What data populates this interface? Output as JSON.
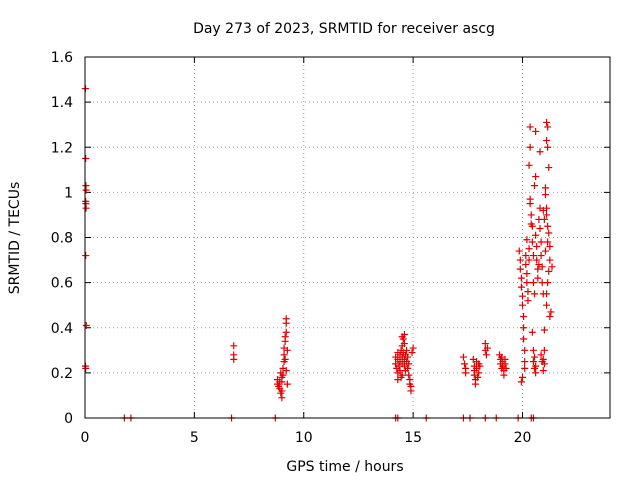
{
  "chart_data": {
    "type": "scatter",
    "title": "Day 273 of 2023, SRMTID for receiver ascg",
    "xlabel": "GPS time / hours",
    "ylabel": "SRMTID / TECUs",
    "xlim": [
      0,
      24
    ],
    "ylim": [
      0,
      1.6
    ],
    "xticks": [
      0,
      5,
      10,
      15,
      20
    ],
    "xtick_labels": [
      "0",
      "5",
      "10",
      "15",
      "20"
    ],
    "yticks": [
      0,
      0.2,
      0.4,
      0.6,
      0.8,
      1,
      1.2,
      1.4,
      1.6
    ],
    "ytick_labels": [
      "0",
      "0.2",
      "0.4",
      "0.6",
      "0.8",
      "1",
      "1.2",
      "1.4",
      "1.6"
    ],
    "grid": true,
    "marker": "+",
    "color": "#e00000",
    "series": [
      {
        "name": "ascg",
        "points": [
          [
            0.02,
            1.46
          ],
          [
            0.03,
            1.15
          ],
          [
            0.04,
            1.03
          ],
          [
            0.05,
            1.01
          ],
          [
            0.03,
            0.96
          ],
          [
            0.04,
            0.95
          ],
          [
            0.05,
            0.93
          ],
          [
            0.03,
            0.72
          ],
          [
            0.06,
            0.41
          ],
          [
            0.02,
            0.23
          ],
          [
            0.03,
            0.22
          ],
          [
            1.8,
            0
          ],
          [
            2.1,
            0
          ],
          [
            6.7,
            0
          ],
          [
            8.7,
            0
          ],
          [
            14.2,
            0
          ],
          [
            14.3,
            0
          ],
          [
            15.6,
            0
          ],
          [
            17.3,
            0
          ],
          [
            17.6,
            0
          ],
          [
            18.3,
            0
          ],
          [
            18.8,
            0
          ],
          [
            19.8,
            0
          ],
          [
            20.4,
            0
          ],
          [
            20.5,
            0
          ],
          [
            6.8,
            0.32
          ],
          [
            6.8,
            0.28
          ],
          [
            6.8,
            0.26
          ],
          [
            8.8,
            0.17
          ],
          [
            8.8,
            0.15
          ],
          [
            8.85,
            0.14
          ],
          [
            8.9,
            0.16
          ],
          [
            8.9,
            0.13
          ],
          [
            8.95,
            0.11
          ],
          [
            9.0,
            0.09
          ],
          [
            9.0,
            0.12
          ],
          [
            9.0,
            0.16
          ],
          [
            9.05,
            0.19
          ],
          [
            9.05,
            0.22
          ],
          [
            9.1,
            0.25
          ],
          [
            9.1,
            0.28
          ],
          [
            9.1,
            0.31
          ],
          [
            9.15,
            0.34
          ],
          [
            9.15,
            0.36
          ],
          [
            9.2,
            0.38
          ],
          [
            9.2,
            0.42
          ],
          [
            9.2,
            0.44
          ],
          [
            9.15,
            0.26
          ],
          [
            9.2,
            0.21
          ],
          [
            9.25,
            0.3
          ],
          [
            9.25,
            0.15
          ],
          [
            9.0,
            0.18
          ],
          [
            8.95,
            0.2
          ],
          [
            14.2,
            0.27
          ],
          [
            14.2,
            0.24
          ],
          [
            14.25,
            0.22
          ],
          [
            14.3,
            0.29
          ],
          [
            14.3,
            0.26
          ],
          [
            14.3,
            0.2
          ],
          [
            14.35,
            0.23
          ],
          [
            14.4,
            0.28
          ],
          [
            14.4,
            0.25
          ],
          [
            14.4,
            0.21
          ],
          [
            14.45,
            0.3
          ],
          [
            14.5,
            0.32
          ],
          [
            14.5,
            0.27
          ],
          [
            14.5,
            0.24
          ],
          [
            14.5,
            0.19
          ],
          [
            14.55,
            0.35
          ],
          [
            14.55,
            0.29
          ],
          [
            14.6,
            0.26
          ],
          [
            14.6,
            0.23
          ],
          [
            14.6,
            0.33
          ],
          [
            14.65,
            0.21
          ],
          [
            14.65,
            0.28
          ],
          [
            14.7,
            0.3
          ],
          [
            14.7,
            0.25
          ],
          [
            14.75,
            0.27
          ],
          [
            14.75,
            0.22
          ],
          [
            14.8,
            0.24
          ],
          [
            14.8,
            0.19
          ],
          [
            14.85,
            0.17
          ],
          [
            14.85,
            0.15
          ],
          [
            14.9,
            0.14
          ],
          [
            14.9,
            0.12
          ],
          [
            14.95,
            0.29
          ],
          [
            15.0,
            0.31
          ],
          [
            14.6,
            0.37
          ],
          [
            14.5,
            0.36
          ],
          [
            14.45,
            0.18
          ],
          [
            14.3,
            0.17
          ],
          [
            17.3,
            0.27
          ],
          [
            17.35,
            0.24
          ],
          [
            17.4,
            0.22
          ],
          [
            17.4,
            0.2
          ],
          [
            17.75,
            0.26
          ],
          [
            17.8,
            0.23
          ],
          [
            17.8,
            0.21
          ],
          [
            17.8,
            0.19
          ],
          [
            17.85,
            0.17
          ],
          [
            17.85,
            0.15
          ],
          [
            17.9,
            0.25
          ],
          [
            17.9,
            0.22
          ],
          [
            17.95,
            0.18
          ],
          [
            18.0,
            0.24
          ],
          [
            18.0,
            0.2
          ],
          [
            18.05,
            0.23
          ],
          [
            18.3,
            0.33
          ],
          [
            18.3,
            0.3
          ],
          [
            18.35,
            0.28
          ],
          [
            18.4,
            0.31
          ],
          [
            18.95,
            0.28
          ],
          [
            19.0,
            0.26
          ],
          [
            19.0,
            0.24
          ],
          [
            19.05,
            0.22
          ],
          [
            19.05,
            0.27
          ],
          [
            19.1,
            0.25
          ],
          [
            19.1,
            0.23
          ],
          [
            19.15,
            0.21
          ],
          [
            19.15,
            0.19
          ],
          [
            19.2,
            0.26
          ],
          [
            19.2,
            0.24
          ],
          [
            19.25,
            0.22
          ],
          [
            19.85,
            0.74
          ],
          [
            19.9,
            0.7
          ],
          [
            19.9,
            0.66
          ],
          [
            19.95,
            0.62
          ],
          [
            19.95,
            0.58
          ],
          [
            20.0,
            0.54
          ],
          [
            20.0,
            0.5
          ],
          [
            20.05,
            0.45
          ],
          [
            20.05,
            0.4
          ],
          [
            20.05,
            0.35
          ],
          [
            20.1,
            0.3
          ],
          [
            20.1,
            0.25
          ],
          [
            20.1,
            0.22
          ],
          [
            20.0,
            0.18
          ],
          [
            19.95,
            0.16
          ],
          [
            20.15,
            0.72
          ],
          [
            20.15,
            0.68
          ],
          [
            20.2,
            0.64
          ],
          [
            20.2,
            0.6
          ],
          [
            20.25,
            0.56
          ],
          [
            20.25,
            0.52
          ],
          [
            20.2,
            0.79
          ],
          [
            20.3,
            0.75
          ],
          [
            20.3,
            0.7
          ],
          [
            20.35,
            0.97
          ],
          [
            20.35,
            0.95
          ],
          [
            20.4,
            0.9
          ],
          [
            20.4,
            0.86
          ],
          [
            20.3,
            1.12
          ],
          [
            20.35,
            1.2
          ],
          [
            20.35,
            1.29
          ],
          [
            20.45,
            0.85
          ],
          [
            20.45,
            0.78
          ],
          [
            20.5,
            0.72
          ],
          [
            20.5,
            0.6
          ],
          [
            20.55,
            0.55
          ],
          [
            20.55,
            1.03
          ],
          [
            20.6,
            1.07
          ],
          [
            20.6,
            1.27
          ],
          [
            20.45,
            0.38
          ],
          [
            20.5,
            0.3
          ],
          [
            20.5,
            0.25
          ],
          [
            20.55,
            0.22
          ],
          [
            20.6,
            0.2
          ],
          [
            20.6,
            0.81
          ],
          [
            20.65,
            0.76
          ],
          [
            20.65,
            0.7
          ],
          [
            20.7,
            0.66
          ],
          [
            20.7,
            0.62
          ],
          [
            20.75,
            0.68
          ],
          [
            20.75,
            0.88
          ],
          [
            20.8,
            0.93
          ],
          [
            20.8,
            0.84
          ],
          [
            20.85,
            0.78
          ],
          [
            20.85,
            0.72
          ],
          [
            20.9,
            0.67
          ],
          [
            20.9,
            0.6
          ],
          [
            20.95,
            0.55
          ],
          [
            20.95,
            0.26
          ],
          [
            21.0,
            0.24
          ],
          [
            21.0,
            0.3
          ],
          [
            20.85,
            0.28
          ],
          [
            20.8,
            1.18
          ],
          [
            21.0,
            0.39
          ],
          [
            21.05,
            0.99
          ],
          [
            21.05,
            1.02
          ],
          [
            21.1,
            0.93
          ],
          [
            21.1,
            0.9
          ],
          [
            21.15,
            0.85
          ],
          [
            21.15,
            0.78
          ],
          [
            21.1,
            1.31
          ],
          [
            21.15,
            1.29
          ],
          [
            21.1,
            1.23
          ],
          [
            21.15,
            1.2
          ],
          [
            21.2,
            1.11
          ],
          [
            21.2,
            0.82
          ],
          [
            21.25,
            0.76
          ],
          [
            21.25,
            0.7
          ],
          [
            21.2,
            0.65
          ],
          [
            21.15,
            0.6
          ],
          [
            21.1,
            0.55
          ],
          [
            21.1,
            0.5
          ],
          [
            21.25,
            0.45
          ],
          [
            21.3,
            0.47
          ],
          [
            21.35,
            0.67
          ],
          [
            21.0,
            0.88
          ],
          [
            20.95,
            0.92
          ],
          [
            21.05,
            0.74
          ],
          [
            20.9,
            0.25
          ],
          [
            20.95,
            0.21
          ],
          [
            20.55,
            0.27
          ],
          [
            20.6,
            0.23
          ]
        ]
      }
    ]
  }
}
